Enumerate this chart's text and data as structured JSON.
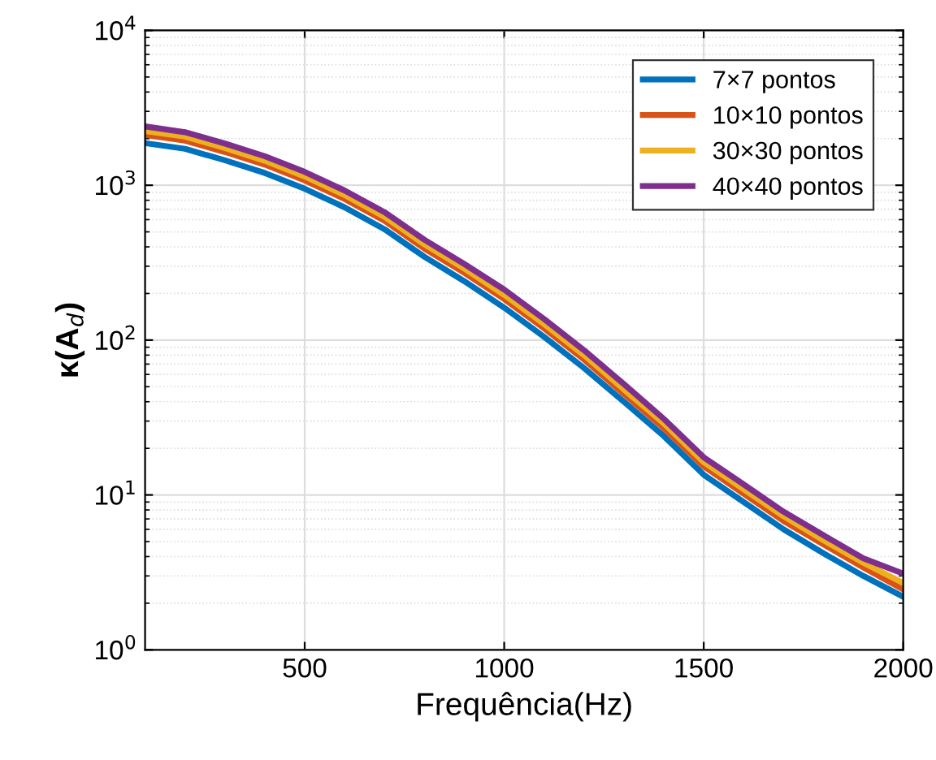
{
  "chart_data": {
    "type": "line",
    "xlabel": "Frequência(Hz)",
    "ylabel": "κ(A$_{d}$)",
    "log": "y",
    "grid": true,
    "legend": "top right",
    "line_style": "solid",
    "marker": "none",
    "x": [
      100,
      200,
      300,
      400,
      500,
      600,
      700,
      800,
      900,
      1000,
      1100,
      1200,
      1300,
      1400,
      1500,
      1600,
      1700,
      1800,
      1900,
      2000
    ],
    "xlim": [
      100,
      2000
    ],
    "xticks": [
      500,
      1000,
      1500,
      2000
    ],
    "ylim": [
      1,
      10000
    ],
    "yticks": [
      {
        "value": 1,
        "label": "10$^{0}$"
      },
      {
        "value": 10,
        "label": "10$^{1}$"
      },
      {
        "value": 100,
        "label": "10$^{2}$"
      },
      {
        "value": 1000,
        "label": "10$^{3}$"
      },
      {
        "value": 10000,
        "label": "10$^{4}$"
      }
    ],
    "series": [
      {
        "name": "7×7 pontos",
        "color": "#0072bd",
        "values": [
          1870,
          1720,
          1450,
          1200,
          950,
          720,
          520,
          345,
          240,
          162,
          105,
          66,
          40,
          24,
          13.5,
          9,
          6,
          4.2,
          3,
          2.2
        ]
      },
      {
        "name": "10×10 pontos",
        "color": "#d95319",
        "values": [
          2110,
          1940,
          1640,
          1360,
          1075,
          815,
          590,
          390,
          272,
          184,
          119,
          75,
          45,
          27,
          15.3,
          10.2,
          6.8,
          4.8,
          3.4,
          2.45
        ]
      },
      {
        "name": "30×30 pontos",
        "color": "#edb120",
        "values": [
          2240,
          2060,
          1740,
          1440,
          1140,
          865,
          625,
          415,
          290,
          196,
          127,
          80,
          48,
          29,
          16.3,
          10.9,
          7.3,
          5.1,
          3.65,
          2.7
        ]
      },
      {
        "name": "40×40 pontos",
        "color": "#7e2f8e",
        "values": [
          2400,
          2200,
          1860,
          1540,
          1220,
          925,
          670,
          445,
          310,
          212,
          137,
          86,
          52,
          31,
          17.5,
          11.7,
          7.8,
          5.5,
          3.9,
          3.1
        ]
      }
    ]
  }
}
